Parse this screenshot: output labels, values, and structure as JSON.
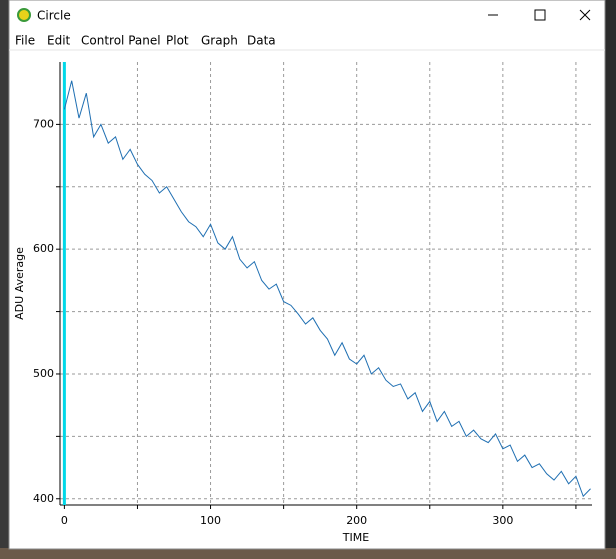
{
  "window": {
    "title": "Circle"
  },
  "menu": [
    "File",
    "Edit",
    "Control Panel",
    "Plot",
    "Graph",
    "Data"
  ],
  "chart_data": {
    "type": "line",
    "xlabel": "TIME",
    "ylabel": "ADU Average",
    "xlim": [
      -3,
      361
    ],
    "ylim": [
      395,
      750
    ],
    "xticks": [
      0,
      100,
      200,
      300
    ],
    "xminor": [
      50,
      150,
      250,
      350
    ],
    "yticks": [
      400,
      500,
      600,
      700
    ],
    "yminor": [
      450,
      550,
      650
    ],
    "grid": true,
    "cursor_x": 0,
    "cursor_color": "#00d8e8",
    "series": [
      {
        "color": "#1f6fb2",
        "x": [
          0,
          5,
          10,
          15,
          20,
          25,
          30,
          35,
          40,
          45,
          50,
          55,
          60,
          65,
          70,
          75,
          80,
          85,
          90,
          95,
          100,
          105,
          110,
          115,
          120,
          125,
          130,
          135,
          140,
          145,
          150,
          155,
          160,
          165,
          170,
          175,
          180,
          185,
          190,
          195,
          200,
          205,
          210,
          215,
          220,
          225,
          230,
          235,
          240,
          245,
          250,
          255,
          260,
          265,
          270,
          275,
          280,
          285,
          290,
          295,
          300,
          305,
          310,
          315,
          320,
          325,
          330,
          335,
          340,
          345,
          350,
          355,
          360
        ],
        "values": [
          712,
          735,
          705,
          725,
          690,
          700,
          685,
          690,
          672,
          680,
          668,
          660,
          655,
          645,
          650,
          640,
          630,
          622,
          618,
          610,
          620,
          605,
          600,
          610,
          592,
          585,
          590,
          575,
          568,
          572,
          558,
          555,
          548,
          540,
          545,
          535,
          528,
          515,
          525,
          512,
          508,
          515,
          500,
          505,
          495,
          490,
          492,
          480,
          485,
          470,
          478,
          462,
          470,
          458,
          462,
          450,
          455,
          448,
          445,
          452,
          440,
          443,
          430,
          435,
          425,
          428,
          420,
          415,
          422,
          412,
          418,
          402,
          408
        ]
      }
    ]
  }
}
